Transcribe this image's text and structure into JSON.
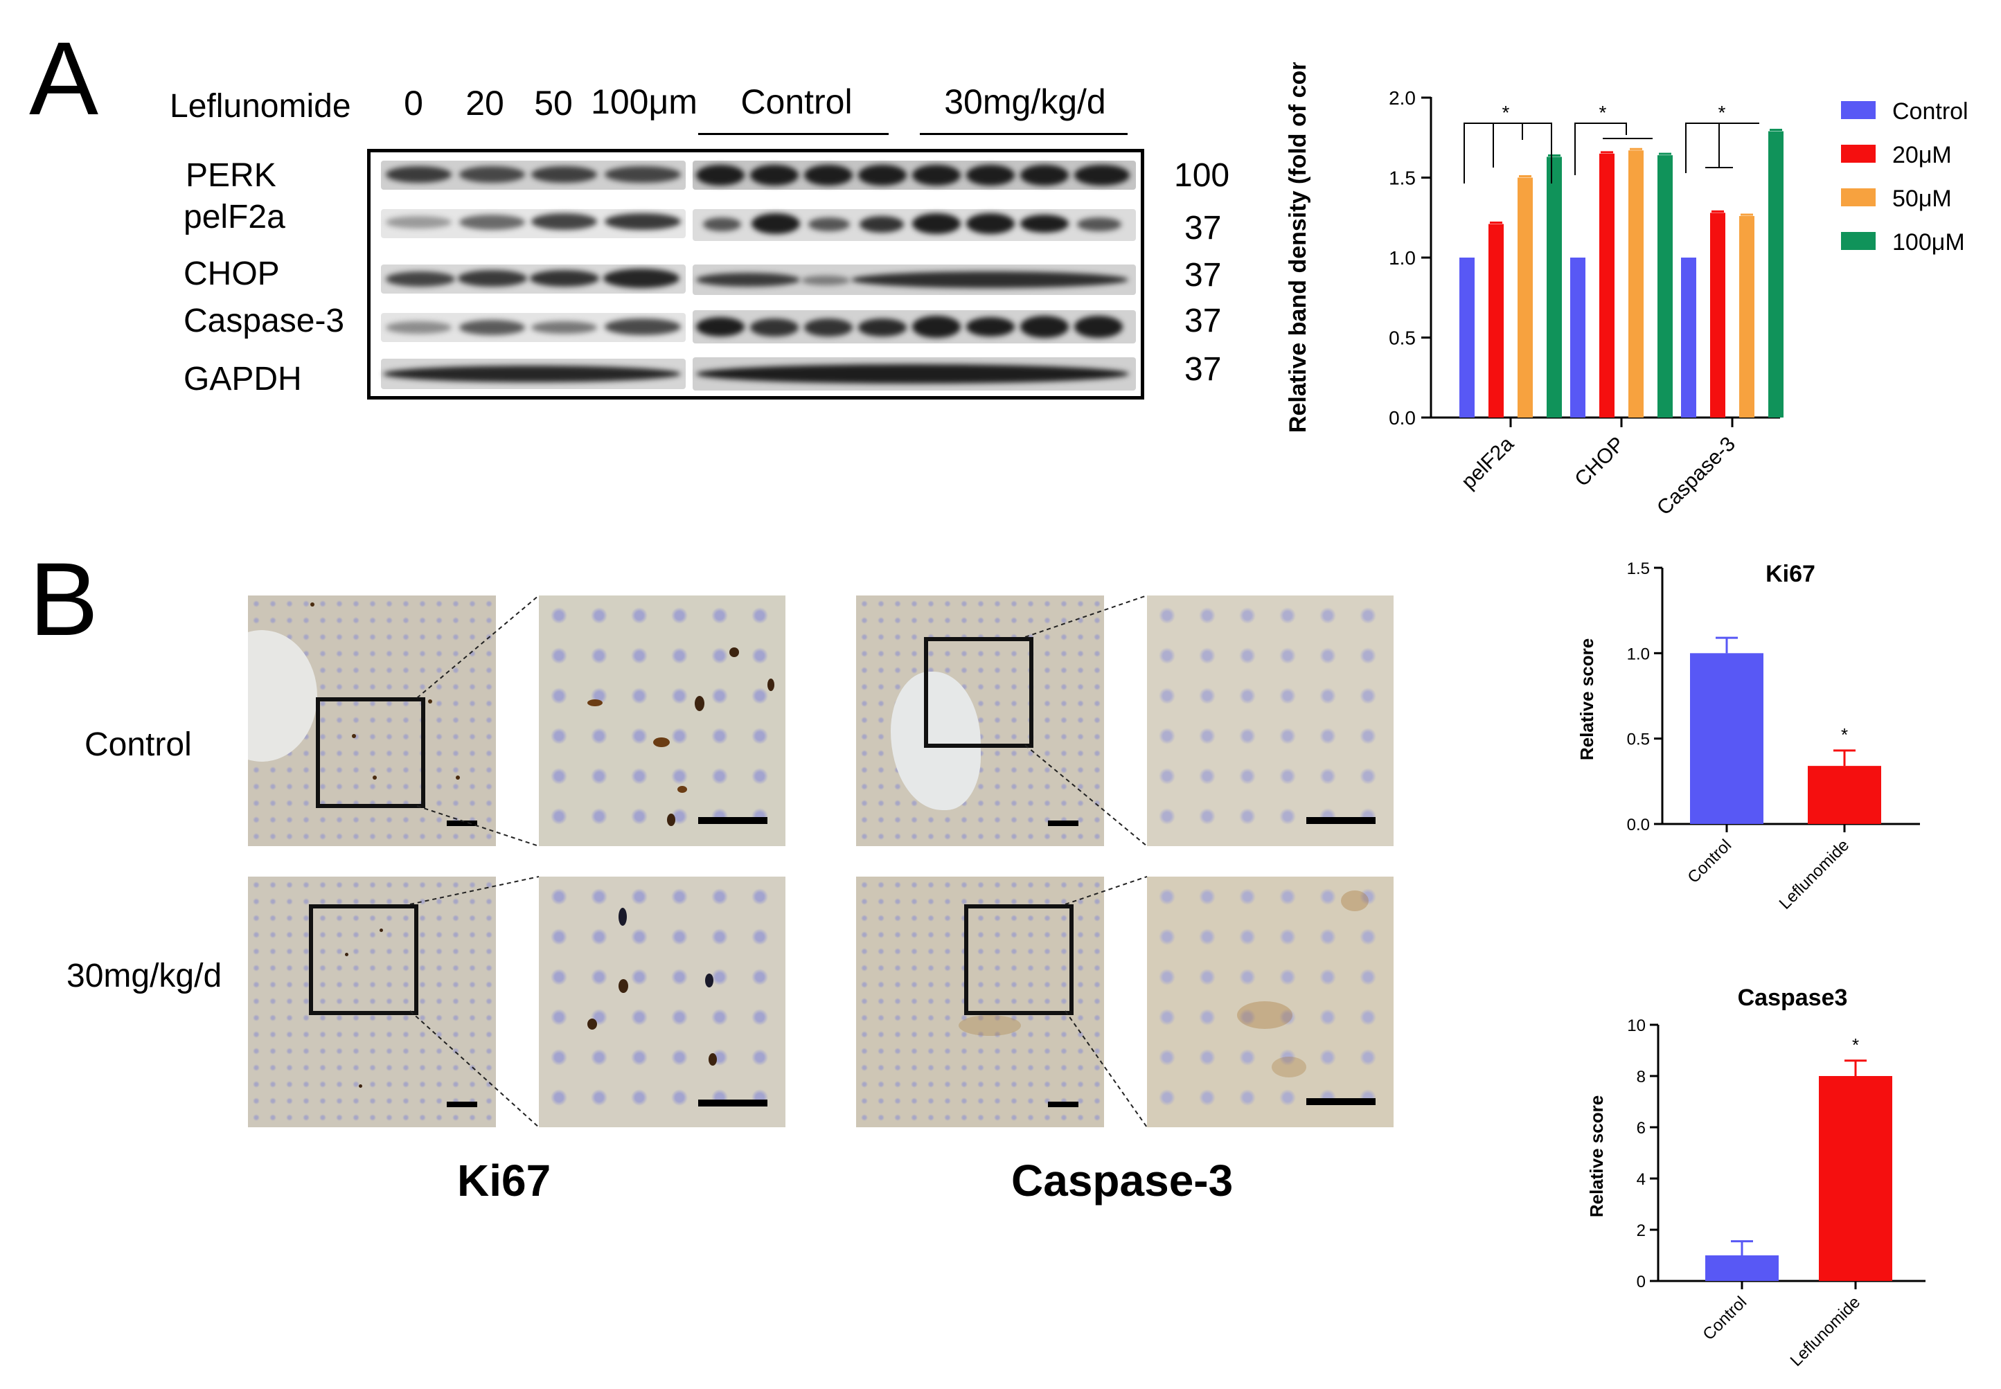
{
  "panelA": {
    "letter": "A",
    "treatment_label": "Leflunomide",
    "lane_labels": [
      "0",
      "20",
      "50",
      "100μm"
    ],
    "group_labels": [
      "Control",
      "30mg/kg/d"
    ],
    "proteins": [
      "PERK",
      "pelF2a",
      "CHOP",
      "Caspase-3",
      "GAPDH"
    ],
    "mw": [
      "100",
      "37",
      "37",
      "37",
      "37"
    ]
  },
  "panelB": {
    "letter": "B",
    "row_labels": [
      "Control",
      "30mg/kg/d"
    ],
    "stain_labels": [
      "Ki67",
      "Caspase-3"
    ]
  },
  "colors": {
    "control": "#5858f5",
    "dose20": "#f50f0f",
    "dose50": "#f7a23f",
    "dose100": "#10935a"
  },
  "chart_data": [
    {
      "type": "bar",
      "ylabel": "Relative band density (fold of control)",
      "categories": [
        "pelF2a",
        "CHOP",
        "Caspase-3"
      ],
      "ylim": [
        0,
        2.0
      ],
      "yticks": [
        "0.0",
        "0.5",
        "1.0",
        "1.5",
        "2.0"
      ],
      "legend": [
        "Control",
        "20μM",
        "50μM",
        "100μM"
      ],
      "legend_position": "right",
      "series": [
        {
          "name": "Control",
          "values": [
            1.0,
            1.0,
            1.0
          ]
        },
        {
          "name": "20μM",
          "values": [
            1.21,
            1.65,
            1.28
          ]
        },
        {
          "name": "50μM",
          "values": [
            1.5,
            1.67,
            1.26
          ]
        },
        {
          "name": "100μM",
          "values": [
            1.63,
            1.64,
            1.79
          ]
        }
      ],
      "significance": [
        "*",
        "*",
        "*"
      ]
    },
    {
      "type": "bar",
      "title": "Ki67",
      "ylabel": "Relative score",
      "categories": [
        "Control",
        "Leflunomide"
      ],
      "values": [
        1.0,
        0.34
      ],
      "errors": [
        0.09,
        0.09
      ],
      "ylim": [
        0,
        1.5
      ],
      "yticks": [
        "0.0",
        "0.5",
        "1.0",
        "1.5"
      ],
      "significance": [
        "",
        "*"
      ]
    },
    {
      "type": "bar",
      "title": "Caspase3",
      "ylabel": "Relative score",
      "categories": [
        "Control",
        "Leflunomide"
      ],
      "values": [
        1.0,
        8.0
      ],
      "errors": [
        0.55,
        0.6
      ],
      "ylim": [
        0,
        10
      ],
      "yticks": [
        "0",
        "2",
        "4",
        "6",
        "8",
        "10"
      ],
      "significance": [
        "",
        "*"
      ]
    }
  ]
}
